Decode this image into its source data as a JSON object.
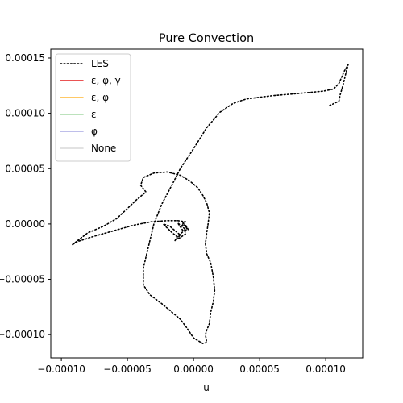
{
  "chart_data": {
    "type": "line",
    "title": "Pure Convection",
    "xlabel": "u",
    "ylabel": "",
    "xlim": [
      -0.000108,
      0.000128
    ],
    "ylim": [
      -0.000121,
      0.000158
    ],
    "xticks": [
      {
        "value": -0.0001,
        "label": "−0.00010"
      },
      {
        "value": -5e-05,
        "label": "−0.00005"
      },
      {
        "value": 0.0,
        "label": "0.00000"
      },
      {
        "value": 5e-05,
        "label": "0.00005"
      },
      {
        "value": 0.0001,
        "label": "0.00010"
      }
    ],
    "yticks": [
      {
        "value": -0.0001,
        "label": "−0.00010"
      },
      {
        "value": -5e-05,
        "label": "−0.00005"
      },
      {
        "value": 0.0,
        "label": "0.00000"
      },
      {
        "value": 5e-05,
        "label": "0.00005"
      },
      {
        "value": 0.0001,
        "label": "0.00010"
      },
      {
        "value": 0.00015,
        "label": "0.00015"
      }
    ],
    "grid": false,
    "legend_position": "upper-left",
    "legend": [
      {
        "label": "LES",
        "color": "#000000",
        "style": "dotted"
      },
      {
        "label": "ε, φ, γ",
        "color": "#e31a1c",
        "style": "solid"
      },
      {
        "label": "ε, φ",
        "color": "#ffb733",
        "style": "solid"
      },
      {
        "label": "ε",
        "color": "#a6d8a6",
        "style": "solid"
      },
      {
        "label": "φ",
        "color": "#a9a9e3",
        "style": "solid"
      },
      {
        "label": "None",
        "color": "#d9d9d9",
        "style": "solid"
      }
    ],
    "series": [
      {
        "name": "LES",
        "color": "#000000",
        "style": "dotted",
        "points": [
          [
            0.000103,
            0.000107
          ],
          [
            0.00011,
            0.000111
          ],
          [
            0.000111,
            0.000117
          ],
          [
            0.000113,
            0.000125
          ],
          [
            0.000115,
            0.000135
          ],
          [
            0.000117,
            0.000144
          ],
          [
            0.000114,
            0.000138
          ],
          [
            0.00011,
            0.000127
          ],
          [
            0.000106,
            0.000122
          ],
          [
            9.8e-05,
            0.00012
          ],
          [
            8e-05,
            0.000118
          ],
          [
            6e-05,
            0.000116
          ],
          [
            4e-05,
            0.000113
          ],
          [
            3e-05,
            0.000109
          ],
          [
            2e-05,
            0.000101
          ],
          [
            1e-05,
            8.7e-05
          ],
          [
            0.0,
            6.8e-05
          ],
          [
            -1e-05,
            5e-05
          ],
          [
            -1.6e-05,
            3.6e-05
          ],
          [
            -2.4e-05,
            1.8e-05
          ],
          [
            -3e-05,
            0.0
          ],
          [
            -3.4e-05,
            -2e-05
          ],
          [
            -3.8e-05,
            -4e-05
          ],
          [
            -3.8e-05,
            -5.5e-05
          ],
          [
            -3.3e-05,
            -6.4e-05
          ],
          [
            -2.4e-05,
            -7.2e-05
          ],
          [
            -1.6e-05,
            -8e-05
          ],
          [
            -1e-05,
            -8.6e-05
          ],
          [
            -5e-06,
            -9.4e-05
          ],
          [
            0.0,
            -0.000103
          ],
          [
            7e-06,
            -0.000108
          ],
          [
            1e-05,
            -0.000107
          ],
          [
            9e-06,
            -0.0001
          ],
          [
            1e-05,
            -9.6e-05
          ],
          [
            1.2e-05,
            -9e-05
          ],
          [
            1.3e-05,
            -8e-05
          ],
          [
            1.5e-05,
            -7e-05
          ],
          [
            1.6e-05,
            -6e-05
          ],
          [
            1.5e-05,
            -4.8e-05
          ],
          [
            1.3e-05,
            -3.5e-05
          ],
          [
            1e-05,
            -2.7e-05
          ],
          [
            9e-06,
            -1.8e-05
          ],
          [
            1e-05,
            -8e-06
          ],
          [
            1.1e-05,
            0.0
          ],
          [
            1.2e-05,
            1e-05
          ],
          [
            1e-05,
            1.9e-05
          ],
          [
            7e-06,
            2.6e-05
          ],
          [
            3e-06,
            3.3e-05
          ],
          [
            -3e-06,
            3.9e-05
          ],
          [
            -1e-05,
            4.4e-05
          ],
          [
            -2e-05,
            4.7e-05
          ],
          [
            -3e-05,
            4.6e-05
          ],
          [
            -3.8e-05,
            4.2e-05
          ],
          [
            -4e-05,
            3.5e-05
          ],
          [
            -3.6e-05,
            2.9e-05
          ],
          [
            -4.3e-05,
            2.2e-05
          ],
          [
            -5e-05,
            1.4e-05
          ],
          [
            -5.8e-05,
            5e-06
          ],
          [
            -6.8e-05,
            -2e-06
          ],
          [
            -8e-05,
            -8e-06
          ],
          [
            -9.2e-05,
            -1.9e-05
          ],
          [
            -8.8e-05,
            -1.6e-05
          ],
          [
            -7.5e-05,
            -1.1e-05
          ],
          [
            -6e-05,
            -6e-06
          ],
          [
            -4.5e-05,
            -1e-06
          ],
          [
            -3.2e-05,
            2e-06
          ],
          [
            -2e-05,
            3e-06
          ],
          [
            -1.2e-05,
            3e-06
          ],
          [
            -6e-06,
            2e-06
          ],
          [
            -9e-06,
            -1e-06
          ],
          [
            -5e-06,
            -3e-06
          ],
          [
            -8e-06,
            1e-06
          ],
          [
            -5e-06,
            -4e-06
          ],
          [
            -7e-06,
            -6e-06
          ],
          [
            -1.2e-05,
            -1.1e-05
          ],
          [
            -1.4e-05,
            -1.5e-05
          ],
          [
            -1e-05,
            -1e-05
          ],
          [
            -1.8e-05,
            -2e-06
          ],
          [
            -2.3e-05,
            0.0
          ],
          [
            -1.7e-05,
            -7e-06
          ],
          [
            -1.1e-05,
            -1.3e-05
          ],
          [
            -6e-06,
            -9e-06
          ],
          [
            -7e-06,
            -4e-06
          ],
          [
            -1.2e-05,
            1e-06
          ],
          [
            -8e-06,
            -6e-06
          ],
          [
            -4e-06,
            -5e-06
          ],
          [
            -6e-06,
            -1e-06
          ]
        ]
      },
      {
        "name": "ε, φ, γ",
        "color": "#e31a1c",
        "style": "solid",
        "points": []
      },
      {
        "name": "ε, φ",
        "color": "#ffb733",
        "style": "solid",
        "points": []
      },
      {
        "name": "ε",
        "color": "#a6d8a6",
        "style": "solid",
        "points": []
      },
      {
        "name": "φ",
        "color": "#a9a9e3",
        "style": "solid",
        "points": []
      },
      {
        "name": "None",
        "color": "#d9d9d9",
        "style": "solid",
        "points": []
      }
    ]
  }
}
